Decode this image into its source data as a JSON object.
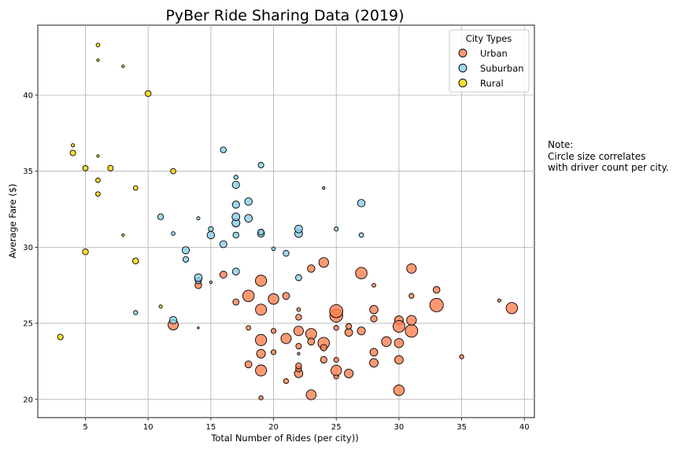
{
  "note_text": "Note:\nCircle size correlates\nwith driver count per city.",
  "chart_data": {
    "type": "scatter",
    "title": "PyBer Ride Sharing Data (2019)",
    "xlabel": "Total Number of Rides (per city))",
    "ylabel": "Average Fare ($)",
    "xlim": [
      1.2,
      40.8
    ],
    "ylim": [
      18.8,
      44.6
    ],
    "xticks": [
      5,
      10,
      15,
      20,
      25,
      30,
      35,
      40
    ],
    "yticks": [
      20,
      25,
      30,
      35,
      40
    ],
    "grid": true,
    "legend": {
      "title": "City Types",
      "position": "top-right"
    },
    "series": [
      {
        "name": "Urban",
        "color": "#FF7F50",
        "points": [
          {
            "x": 19,
            "y": 20.1,
            "d": 5
          },
          {
            "x": 21,
            "y": 21.2,
            "d": 7
          },
          {
            "x": 22,
            "y": 21.7,
            "d": 20
          },
          {
            "x": 23,
            "y": 20.3,
            "d": 28
          },
          {
            "x": 25,
            "y": 21.5,
            "d": 7
          },
          {
            "x": 25,
            "y": 21.9,
            "d": 32
          },
          {
            "x": 26,
            "y": 21.7,
            "d": 22
          },
          {
            "x": 30,
            "y": 20.6,
            "d": 32
          },
          {
            "x": 18,
            "y": 22.3,
            "d": 14
          },
          {
            "x": 19,
            "y": 21.9,
            "d": 35
          },
          {
            "x": 19,
            "y": 23.0,
            "d": 22
          },
          {
            "x": 20,
            "y": 23.1,
            "d": 7
          },
          {
            "x": 21,
            "y": 24.0,
            "d": 30
          },
          {
            "x": 22,
            "y": 22.0,
            "d": 10
          },
          {
            "x": 22,
            "y": 22.2,
            "d": 10
          },
          {
            "x": 22,
            "y": 23.0,
            "d": 2
          },
          {
            "x": 22,
            "y": 23.5,
            "d": 9
          },
          {
            "x": 19,
            "y": 23.9,
            "d": 36
          },
          {
            "x": 22,
            "y": 24.5,
            "d": 26
          },
          {
            "x": 23,
            "y": 24.3,
            "d": 34
          },
          {
            "x": 24,
            "y": 23.7,
            "d": 38
          },
          {
            "x": 24,
            "y": 23.4,
            "d": 12
          },
          {
            "x": 24,
            "y": 22.6,
            "d": 12
          },
          {
            "x": 25,
            "y": 22.6,
            "d": 7
          },
          {
            "x": 26,
            "y": 24.4,
            "d": 17
          },
          {
            "x": 27,
            "y": 24.5,
            "d": 18
          },
          {
            "x": 28,
            "y": 23.1,
            "d": 17
          },
          {
            "x": 28,
            "y": 22.4,
            "d": 21
          },
          {
            "x": 29,
            "y": 23.8,
            "d": 27
          },
          {
            "x": 30,
            "y": 23.7,
            "d": 24
          },
          {
            "x": 30,
            "y": 22.6,
            "d": 21
          },
          {
            "x": 31,
            "y": 24.5,
            "d": 45
          },
          {
            "x": 35,
            "y": 22.8,
            "d": 5
          },
          {
            "x": 18,
            "y": 24.7,
            "d": 6
          },
          {
            "x": 22,
            "y": 25.4,
            "d": 10
          },
          {
            "x": 22,
            "y": 25.9,
            "d": 4
          },
          {
            "x": 25,
            "y": 25.5,
            "d": 48
          },
          {
            "x": 25,
            "y": 25.8,
            "d": 49
          },
          {
            "x": 28,
            "y": 25.3,
            "d": 12
          },
          {
            "x": 28,
            "y": 25.9,
            "d": 20
          },
          {
            "x": 30,
            "y": 25.2,
            "d": 22
          },
          {
            "x": 30,
            "y": 24.8,
            "d": 40
          },
          {
            "x": 31,
            "y": 25.2,
            "d": 27
          },
          {
            "x": 33,
            "y": 26.2,
            "d": 52
          },
          {
            "x": 38,
            "y": 26.5,
            "d": 3
          },
          {
            "x": 39,
            "y": 26.0,
            "d": 37
          },
          {
            "x": 12,
            "y": 24.9,
            "d": 30
          },
          {
            "x": 14,
            "y": 27.5,
            "d": 13
          },
          {
            "x": 16,
            "y": 28.2,
            "d": 14
          },
          {
            "x": 17,
            "y": 26.4,
            "d": 11
          },
          {
            "x": 18,
            "y": 26.8,
            "d": 38
          },
          {
            "x": 19,
            "y": 25.9,
            "d": 35
          },
          {
            "x": 19,
            "y": 27.8,
            "d": 36
          },
          {
            "x": 20,
            "y": 26.6,
            "d": 32
          },
          {
            "x": 21,
            "y": 26.8,
            "d": 14
          },
          {
            "x": 23,
            "y": 28.6,
            "d": 16
          },
          {
            "x": 24,
            "y": 29.0,
            "d": 27
          },
          {
            "x": 27,
            "y": 28.3,
            "d": 38
          },
          {
            "x": 28,
            "y": 27.5,
            "d": 4
          },
          {
            "x": 31,
            "y": 26.8,
            "d": 7
          },
          {
            "x": 31,
            "y": 28.6,
            "d": 26
          },
          {
            "x": 33,
            "y": 27.2,
            "d": 13
          },
          {
            "x": 26,
            "y": 24.8,
            "d": 9
          },
          {
            "x": 20,
            "y": 24.5,
            "d": 7
          },
          {
            "x": 23,
            "y": 23.8,
            "d": 14
          },
          {
            "x": 25,
            "y": 24.7,
            "d": 7
          }
        ]
      },
      {
        "name": "Suburban",
        "color": "#87CEEB",
        "points": [
          {
            "x": 9,
            "y": 25.7,
            "d": 5
          },
          {
            "x": 12,
            "y": 25.2,
            "d": 16
          },
          {
            "x": 14,
            "y": 24.7,
            "d": 1
          },
          {
            "x": 14,
            "y": 27.8,
            "d": 11
          },
          {
            "x": 14,
            "y": 28.0,
            "d": 17
          },
          {
            "x": 15,
            "y": 27.7,
            "d": 2
          },
          {
            "x": 17,
            "y": 28.4,
            "d": 14
          },
          {
            "x": 22,
            "y": 28.0,
            "d": 11
          },
          {
            "x": 13,
            "y": 29.2,
            "d": 9
          },
          {
            "x": 13,
            "y": 29.8,
            "d": 15
          },
          {
            "x": 15,
            "y": 30.8,
            "d": 16
          },
          {
            "x": 15,
            "y": 31.2,
            "d": 7
          },
          {
            "x": 16,
            "y": 30.2,
            "d": 14
          },
          {
            "x": 17,
            "y": 30.8,
            "d": 10
          },
          {
            "x": 17,
            "y": 31.6,
            "d": 18
          },
          {
            "x": 17,
            "y": 32.0,
            "d": 17
          },
          {
            "x": 18,
            "y": 31.9,
            "d": 17
          },
          {
            "x": 19,
            "y": 30.9,
            "d": 14
          },
          {
            "x": 19,
            "y": 31.0,
            "d": 10
          },
          {
            "x": 20,
            "y": 29.9,
            "d": 4
          },
          {
            "x": 21,
            "y": 29.6,
            "d": 10
          },
          {
            "x": 22,
            "y": 30.9,
            "d": 17
          },
          {
            "x": 22,
            "y": 31.2,
            "d": 17
          },
          {
            "x": 25,
            "y": 31.2,
            "d": 5
          },
          {
            "x": 27,
            "y": 30.8,
            "d": 6
          },
          {
            "x": 11,
            "y": 32.0,
            "d": 10
          },
          {
            "x": 12,
            "y": 30.9,
            "d": 4
          },
          {
            "x": 14,
            "y": 31.9,
            "d": 3
          },
          {
            "x": 17,
            "y": 32.8,
            "d": 15
          },
          {
            "x": 18,
            "y": 33.0,
            "d": 16
          },
          {
            "x": 17,
            "y": 34.1,
            "d": 15
          },
          {
            "x": 17,
            "y": 34.6,
            "d": 5
          },
          {
            "x": 19,
            "y": 35.4,
            "d": 9
          },
          {
            "x": 24,
            "y": 33.9,
            "d": 2
          },
          {
            "x": 27,
            "y": 32.9,
            "d": 16
          },
          {
            "x": 16,
            "y": 36.4,
            "d": 10
          }
        ]
      },
      {
        "name": "Rural",
        "color": "#FFD700",
        "points": [
          {
            "x": 3,
            "y": 24.1,
            "d": 9
          },
          {
            "x": 5,
            "y": 29.7,
            "d": 10
          },
          {
            "x": 6,
            "y": 33.5,
            "d": 6
          },
          {
            "x": 6,
            "y": 34.4,
            "d": 6
          },
          {
            "x": 5,
            "y": 35.2,
            "d": 8
          },
          {
            "x": 7,
            "y": 35.2,
            "d": 9
          },
          {
            "x": 4,
            "y": 36.2,
            "d": 9
          },
          {
            "x": 4,
            "y": 36.7,
            "d": 3
          },
          {
            "x": 6,
            "y": 36.0,
            "d": 2
          },
          {
            "x": 6,
            "y": 42.3,
            "d": 2
          },
          {
            "x": 6,
            "y": 43.3,
            "d": 4
          },
          {
            "x": 8,
            "y": 41.9,
            "d": 2
          },
          {
            "x": 8,
            "y": 30.8,
            "d": 2
          },
          {
            "x": 9,
            "y": 33.9,
            "d": 6
          },
          {
            "x": 9,
            "y": 29.1,
            "d": 10
          },
          {
            "x": 10,
            "y": 40.1,
            "d": 10
          },
          {
            "x": 11,
            "y": 26.1,
            "d": 3
          },
          {
            "x": 12,
            "y": 35.0,
            "d": 8
          }
        ]
      }
    ]
  }
}
